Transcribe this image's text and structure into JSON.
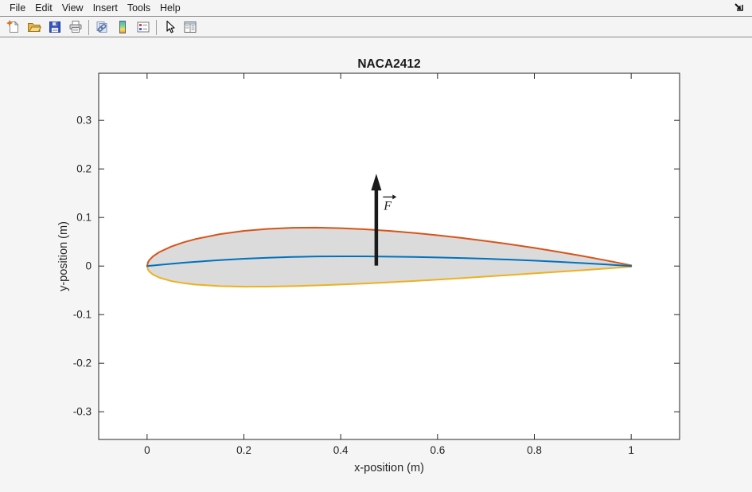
{
  "window": {
    "menu": {
      "items": [
        "File",
        "Edit",
        "View",
        "Insert",
        "Tools",
        "Help"
      ]
    },
    "toolbar": {
      "icons": [
        "new-figure-icon",
        "open-file-icon",
        "save-figure-icon",
        "print-figure-icon",
        "link-plot-icon",
        "insert-colorbar-icon",
        "insert-legend-icon",
        "edit-plot-icon",
        "property-inspector-icon"
      ]
    },
    "dock_icon": "dock-figure-arrow-icon"
  },
  "chart_data": {
    "type": "line",
    "title": "NACA2412",
    "xlabel": "x-position (m)",
    "ylabel": "y-position (m)",
    "xlim": [
      -0.1,
      1.1
    ],
    "ylim": [
      -0.357,
      0.397
    ],
    "grid": false,
    "xticks": [
      0,
      0.2,
      0.4,
      0.6,
      0.8,
      1
    ],
    "xtick_labels": [
      "0",
      "0.2",
      "0.4",
      "0.6",
      "0.8",
      "1"
    ],
    "yticks": [
      0.3,
      0.2,
      0.1,
      0,
      -0.1,
      -0.2,
      -0.3
    ],
    "ytick_labels": [
      "0.3",
      "0.2",
      "0.1",
      "0",
      "-0.1",
      "-0.2",
      "-0.3"
    ],
    "axes_color": "#262626",
    "fill_color": "#dbdbdb",
    "x": [
      0,
      0.002,
      0.005,
      0.0125,
      0.025,
      0.05,
      0.075,
      0.1,
      0.15,
      0.2,
      0.25,
      0.3,
      0.35,
      0.4,
      0.45,
      0.5,
      0.55,
      0.6,
      0.65,
      0.7,
      0.75,
      0.8,
      0.85,
      0.9,
      0.95,
      1.0
    ],
    "series": [
      {
        "name": "upper-surface",
        "color": "#d95319",
        "values": [
          0,
          0.008,
          0.0127,
          0.0202,
          0.0286,
          0.0402,
          0.0488,
          0.0556,
          0.0657,
          0.0724,
          0.0766,
          0.0788,
          0.0792,
          0.078,
          0.0757,
          0.0724,
          0.0683,
          0.0634,
          0.0579,
          0.0516,
          0.0448,
          0.0374,
          0.0293,
          0.0206,
          0.0113,
          0.0013
        ]
      },
      {
        "name": "lower-surface",
        "color": "#edb120",
        "values": [
          0,
          -0.0076,
          -0.0117,
          -0.0177,
          -0.0237,
          -0.0309,
          -0.0352,
          -0.0381,
          -0.0413,
          -0.0424,
          -0.0422,
          -0.0413,
          -0.0398,
          -0.038,
          -0.0359,
          -0.0335,
          -0.0308,
          -0.0279,
          -0.0248,
          -0.0216,
          -0.0184,
          -0.0151,
          -0.0118,
          -0.0084,
          -0.0049,
          -0.0013
        ]
      },
      {
        "name": "camber-line",
        "color": "#0072bd",
        "values": [
          0,
          0.0002,
          0.0005,
          0.0012,
          0.0024,
          0.0047,
          0.0068,
          0.0088,
          0.0122,
          0.015,
          0.0172,
          0.0188,
          0.0197,
          0.02,
          0.0199,
          0.0194,
          0.0188,
          0.0178,
          0.0165,
          0.015,
          0.0132,
          0.0111,
          0.0088,
          0.0061,
          0.0032,
          0
        ]
      }
    ],
    "annotation": {
      "type": "arrow",
      "x": 0.4735,
      "y_start": 0.001,
      "y_end": 0.19,
      "color": "#1a1a1a",
      "label": "F",
      "label_x": 0.489,
      "label_y": 0.116
    }
  }
}
